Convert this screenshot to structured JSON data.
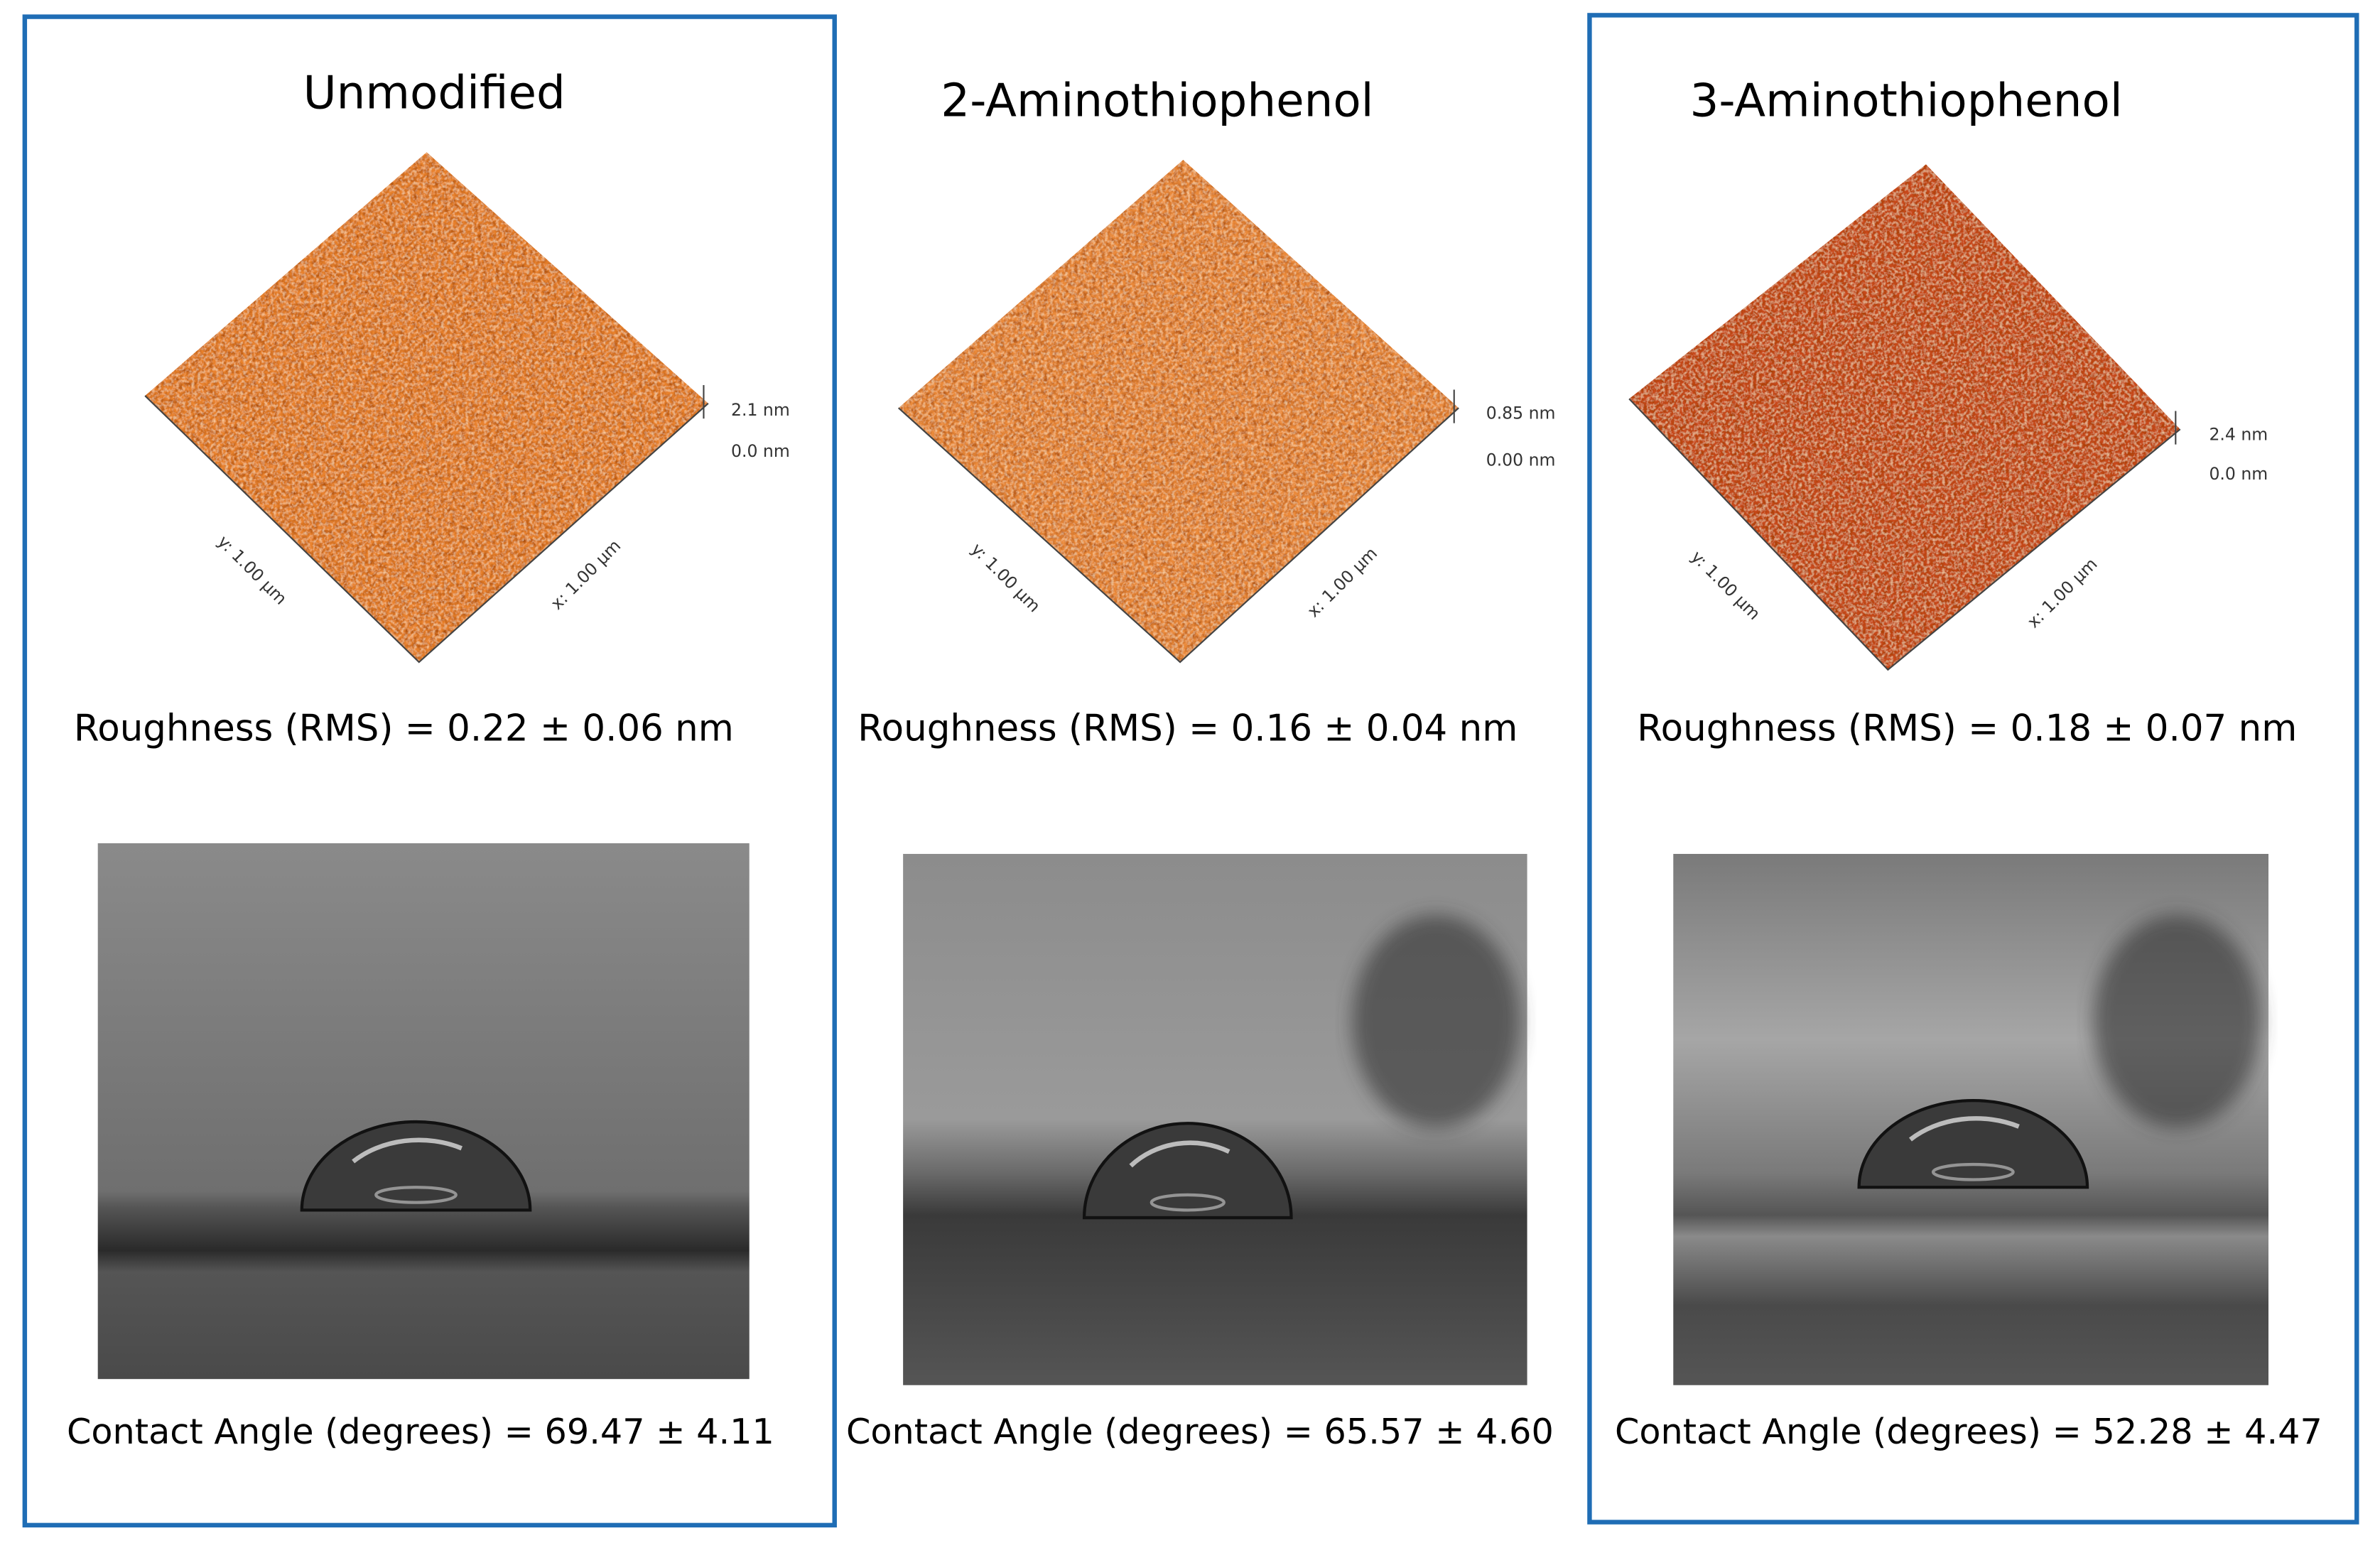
{
  "panels": [
    {
      "title": "Unmodified",
      "afm": {
        "height_max": "2.1 nm",
        "height_min": "0.0 nm",
        "y_axis": "y: 1.00 µm",
        "x_axis": "x: 1.00 µm"
      },
      "roughness": "Roughness (RMS) = 0.22 ± 0.06 nm",
      "contact_angle": "Contact Angle (degrees) = 69.47 ± 4.11"
    },
    {
      "title": "2-Aminothiophenol",
      "afm": {
        "height_max": "0.85 nm",
        "height_min": "0.00 nm",
        "y_axis": "y: 1.00 µm",
        "x_axis": "x: 1.00 µm"
      },
      "roughness": "Roughness (RMS) = 0.16 ± 0.04 nm",
      "contact_angle": "Contact Angle (degrees) = 65.57 ± 4.60"
    },
    {
      "title": "3-Aminothiophenol",
      "afm": {
        "height_max": "2.4 nm",
        "height_min": "0.0 nm",
        "y_axis": "y: 1.00 µm",
        "x_axis": "x: 1.00 µm"
      },
      "roughness": "Roughness (RMS) = 0.18  ± 0.07 nm",
      "contact_angle": "Contact Angle (degrees) = 52.28 ± 4.47"
    }
  ]
}
